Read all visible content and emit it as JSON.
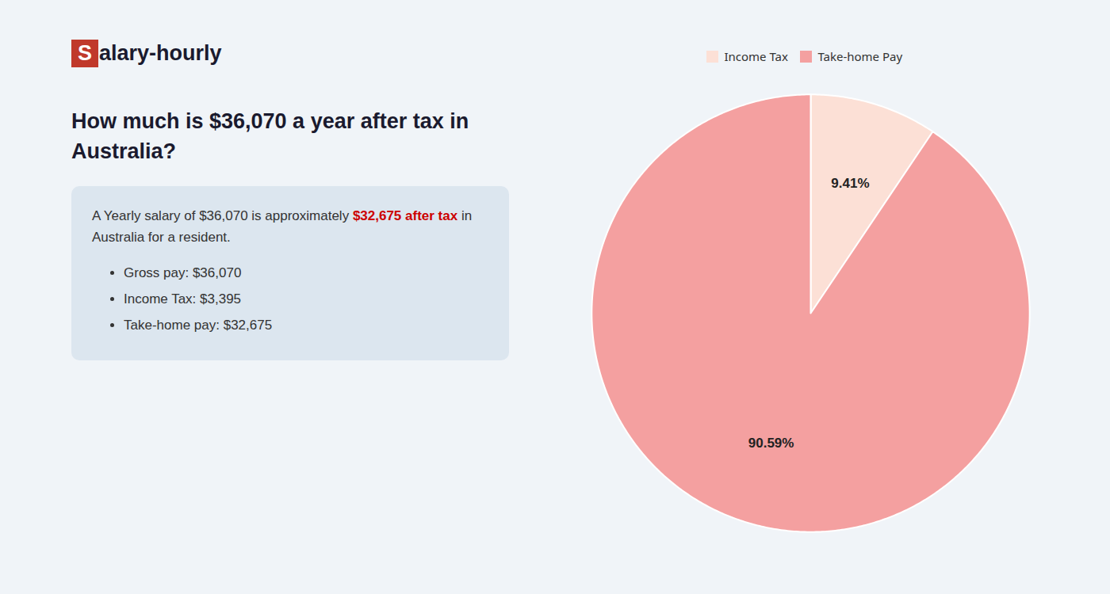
{
  "chart_data": {
    "type": "pie",
    "title": "How much is $36,070 a year after tax in\nAustralia?",
    "logo": {
      "initial": "S",
      "rest": "alary-hourly",
      "color": "#c0392b"
    },
    "annotations": [
      [
        {
          "text": "A Yearly salary of $36,070 is approximately "
        },
        {
          "text": "$32,675 after tax",
          "color": "#cc0000"
        },
        {
          "text": " in"
        }
      ],
      [
        {
          "text": "Australia for a resident."
        }
      ]
    ],
    "bullets": [
      "Gross pay: $36,070",
      "Income Tax: $3,395",
      "Take-home pay: $32,675"
    ],
    "categories": [
      "Income Tax",
      "Take-home Pay"
    ],
    "values": [
      9.41,
      90.59
    ],
    "value_labels": [
      "9.41%",
      "90.59%"
    ],
    "colors": [
      "#fce0d6",
      "#f4a0a0"
    ],
    "data_labels": true,
    "legend": "top"
  }
}
